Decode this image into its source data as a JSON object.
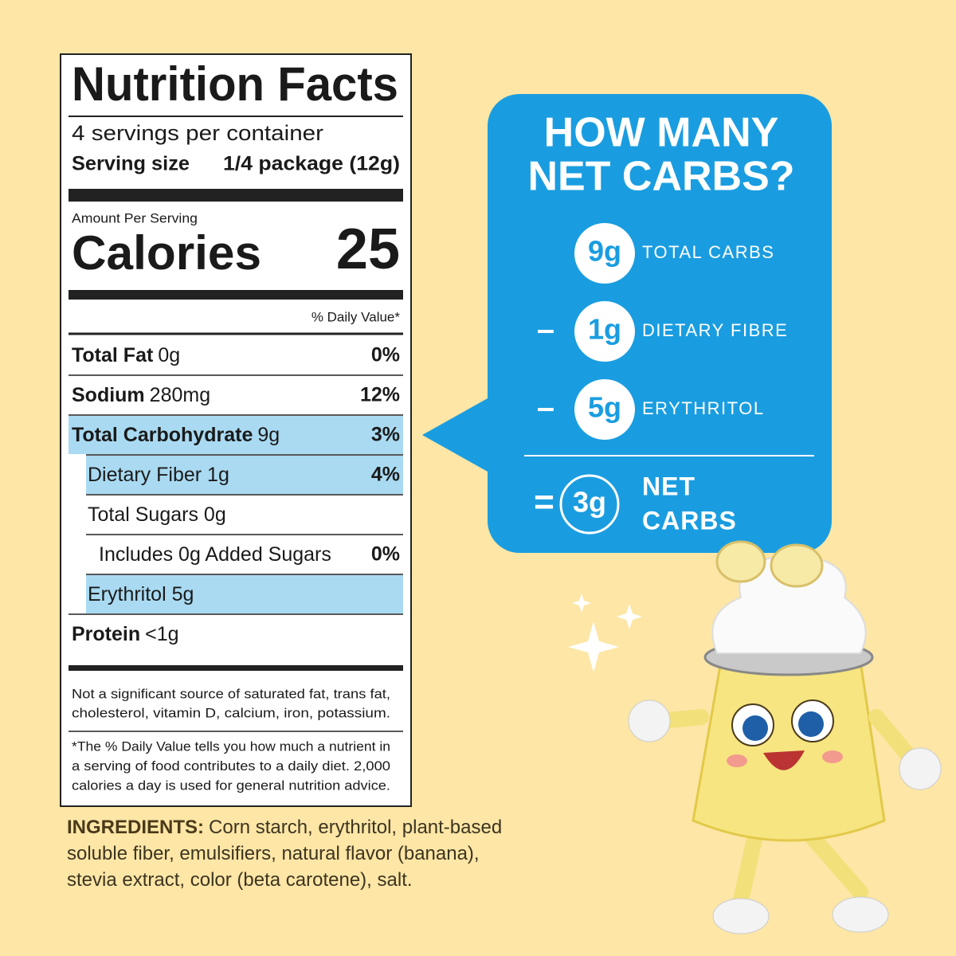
{
  "label": {
    "title": "Nutrition Facts",
    "servings": "4 servings per container",
    "serving_size_label": "Serving size",
    "serving_size_value": "1/4 package (12g)",
    "amount_per_serving": "Amount Per Serving",
    "calories_label": "Calories",
    "calories_value": "25",
    "dv_header": "% Daily Value*",
    "rows": [
      {
        "name": "Total Fat",
        "amount": "0g",
        "dv": "0%"
      },
      {
        "name": "Sodium",
        "amount": "280mg",
        "dv": "12%"
      },
      {
        "name": "Total Carbohydrate",
        "amount": "9g",
        "dv": "3%"
      },
      {
        "name": "Dietary Fiber 1g",
        "dv": "4%"
      },
      {
        "name": "Total Sugars 0g"
      },
      {
        "name": "Includes 0g Added Sugars",
        "dv": "0%"
      },
      {
        "name": "Erythritol 5g"
      },
      {
        "name": "Protein",
        "amount": "<1g"
      }
    ],
    "footnote_1": [
      "Not a significant source of saturated fat, trans fat,",
      "cholesterol, vitamin D, calcium, iron, potassium."
    ],
    "footnote_2": [
      "*The % Daily Value tells you how much a nutrient in",
      "a serving of food contributes to a daily diet. 2,000",
      "calories a day is used for general nutrition advice."
    ]
  },
  "bubble": {
    "title": [
      "HOW MANY",
      "NET CARBS?"
    ],
    "items": [
      {
        "value": "9g",
        "label": "TOTAL CARBS"
      },
      {
        "op": "–",
        "value": "1g",
        "label": "DIETARY FIBRE"
      },
      {
        "op": "–",
        "value": "5g",
        "label": "ERYTHRITOL"
      }
    ],
    "result": {
      "op": "=",
      "value": "3g",
      "label": [
        "NET",
        "CARBS"
      ]
    }
  },
  "ingredients": {
    "label": "INGREDIENTS:",
    "lines": [
      "Corn starch, erythritol, plant-based",
      "soluble fiber, emulsifiers, natural flavor (banana),",
      "stevia extract, color (beta carotene), salt."
    ]
  }
}
